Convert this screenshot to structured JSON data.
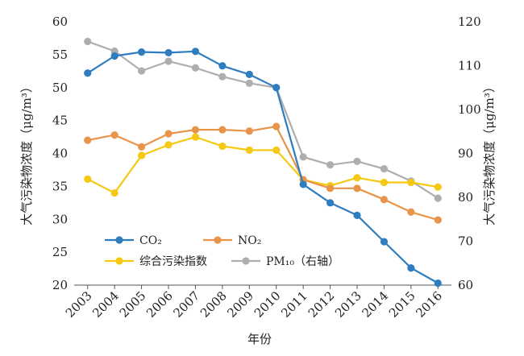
{
  "chart_data": {
    "type": "line",
    "title": "",
    "xlabel": "年份",
    "ylabel_left": "大气污染物浓度（μg/m³）",
    "ylabel_right": "大气污染物浓度（μg/m³）",
    "categories": [
      "2003",
      "2004",
      "2005",
      "2006",
      "2007",
      "2008",
      "2009",
      "2010",
      "2011",
      "2012",
      "2013",
      "2014",
      "2015",
      "2016"
    ],
    "ylim_left": [
      20,
      60
    ],
    "yticks_left": [
      20,
      25,
      30,
      35,
      40,
      45,
      50,
      55,
      60
    ],
    "ylim_right": [
      60,
      120
    ],
    "yticks_right": [
      60,
      70,
      80,
      90,
      100,
      110,
      120
    ],
    "grid": false,
    "legend_placement": "lower-left",
    "series": [
      {
        "name": "CO₂",
        "axis": "left",
        "color": "#2e7dc0",
        "values": [
          52.2,
          54.8,
          55.4,
          55.3,
          55.5,
          53.3,
          52.0,
          50.0,
          35.3,
          32.5,
          30.6,
          26.6,
          22.6,
          20.3
        ]
      },
      {
        "name": "NO₂",
        "axis": "left",
        "color": "#e8944a",
        "values": [
          42.0,
          42.8,
          41.0,
          43.0,
          43.6,
          43.6,
          43.4,
          44.1,
          36.0,
          34.7,
          34.7,
          33.0,
          31.1,
          29.9
        ]
      },
      {
        "name": "综合污染指数",
        "axis": "left",
        "color": "#f5c813",
        "values": [
          36.1,
          34.0,
          39.7,
          41.3,
          42.5,
          41.1,
          40.5,
          40.5,
          36.0,
          35.1,
          36.3,
          35.6,
          35.6,
          34.9
        ]
      },
      {
        "name": "PM₁₀（右轴）",
        "axis": "right",
        "color": "#aeaeae",
        "values": [
          115.5,
          113.3,
          108.8,
          111.0,
          109.5,
          107.5,
          106.0,
          105.0,
          89.2,
          87.4,
          88.2,
          86.5,
          83.7,
          79.8
        ]
      }
    ]
  }
}
